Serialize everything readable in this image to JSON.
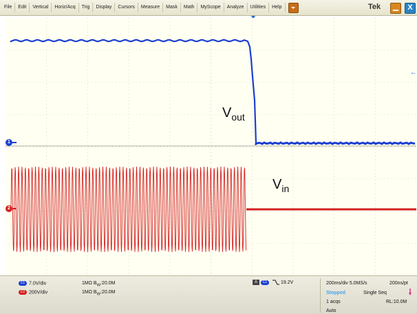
{
  "menubar": {
    "items": [
      "File",
      "Edit",
      "Vertical",
      "Horiz/Acq",
      "Trig",
      "Display",
      "Cursors",
      "Measure",
      "Mask",
      "Math",
      "MyScope",
      "Analyze",
      "Utilities",
      "Help"
    ],
    "brand": "Tek",
    "close_glyph": "X"
  },
  "graticule": {
    "ch1_label": "1",
    "ch2_label": "2",
    "vout_main": "V",
    "vout_sub": "out",
    "vin_main": "V",
    "vin_sub": "in"
  },
  "channels": {
    "ch1": {
      "badge": "C1",
      "scale": "7.0V/div",
      "impedance": "1MΩ",
      "bw_prefix": "B",
      "bw_sub": "W",
      "bw": ":20.0M",
      "color": "#1b3fd2"
    },
    "ch2": {
      "badge": "C2",
      "scale": "200V/div",
      "impedance": "1MΩ",
      "bw_prefix": "B",
      "bw_sub": "W",
      "bw": ":20.0M",
      "color": "#d42020"
    }
  },
  "trigger": {
    "source_badge": "A",
    "channel_badge": "C1",
    "level": "19.2V"
  },
  "acquisition": {
    "timebase": "200ms/div  5.0MS/s",
    "record": "200ns/pt",
    "state": "Stopped",
    "mode": "Single Seq",
    "count": "1 acqs",
    "record_length": "RL:10.0M",
    "trigger_mode": "Auto"
  }
}
